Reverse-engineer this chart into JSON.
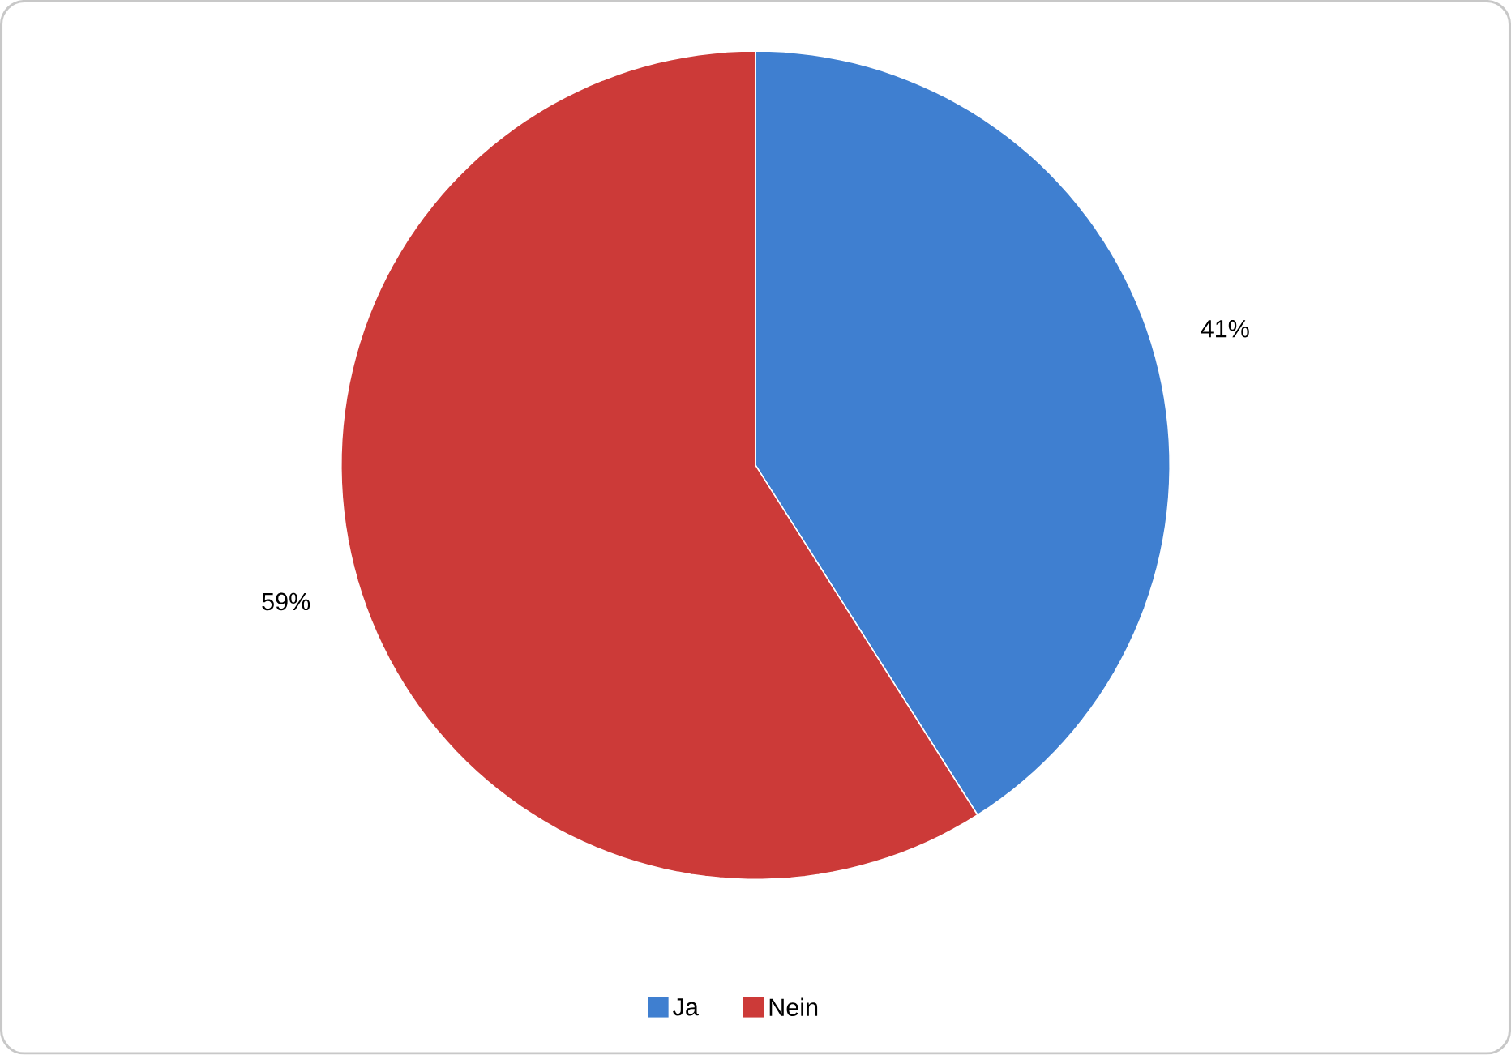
{
  "chart_data": {
    "type": "pie",
    "categories": [
      "Ja",
      "Nein"
    ],
    "values": [
      41,
      59
    ],
    "colors": [
      "#3f7fd0",
      "#cc3a38"
    ],
    "value_labels": [
      "41%",
      "59%"
    ],
    "legend": "bottom"
  }
}
